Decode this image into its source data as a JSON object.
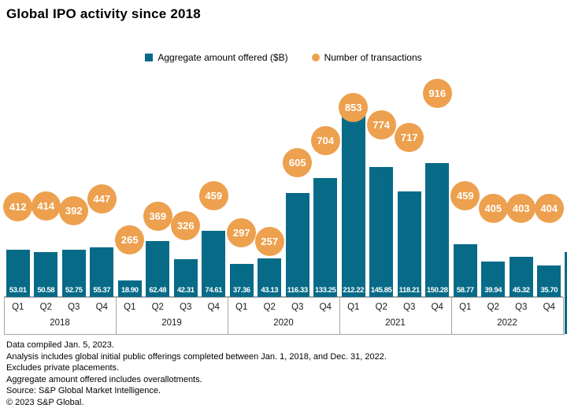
{
  "chart_data": {
    "type": "bar",
    "title": "Global IPO activity since 2018",
    "legend_position": "top-center",
    "grid": false,
    "categories": [
      "Q1",
      "Q2",
      "Q3",
      "Q4",
      "Q1",
      "Q2",
      "Q3",
      "Q4",
      "Q1",
      "Q2",
      "Q3",
      "Q4",
      "Q1",
      "Q2",
      "Q3",
      "Q4",
      "Q1",
      "Q2",
      "Q3",
      "Q4"
    ],
    "group_labels": [
      "2018",
      "2019",
      "2020",
      "2021",
      "2022"
    ],
    "series": [
      {
        "name": "Aggregate amount offered ($B)",
        "type": "bar",
        "color": "#076b88",
        "values": [
          53.01,
          50.58,
          52.75,
          55.37,
          18.9,
          62.48,
          42.31,
          74.61,
          37.36,
          43.13,
          116.33,
          133.25,
          212.22,
          145.85,
          118.21,
          150.28,
          58.77,
          39.94,
          45.32,
          35.7
        ]
      },
      {
        "name": "Number of transactions",
        "type": "bubble",
        "color": "#eda04e",
        "values": [
          412,
          414,
          392,
          447,
          265,
          369,
          326,
          459,
          297,
          257,
          605,
          704,
          853,
          774,
          717,
          916,
          459,
          405,
          403,
          404
        ]
      }
    ]
  },
  "colors": {
    "bar_teal": "#076b88",
    "bubble_orange": "#eda04e",
    "axis_gray": "#a6a6a6"
  },
  "footnotes": [
    "Data compiled Jan. 5, 2023.",
    "Analysis includes global initial public offerings completed between Jan. 1, 2018, and Dec. 31, 2022.",
    "Excludes private placements.",
    "Aggregate amount offered includes overallotments.",
    "Source: S&P Global Market Intelligence.",
    "© 2023 S&P Global."
  ]
}
